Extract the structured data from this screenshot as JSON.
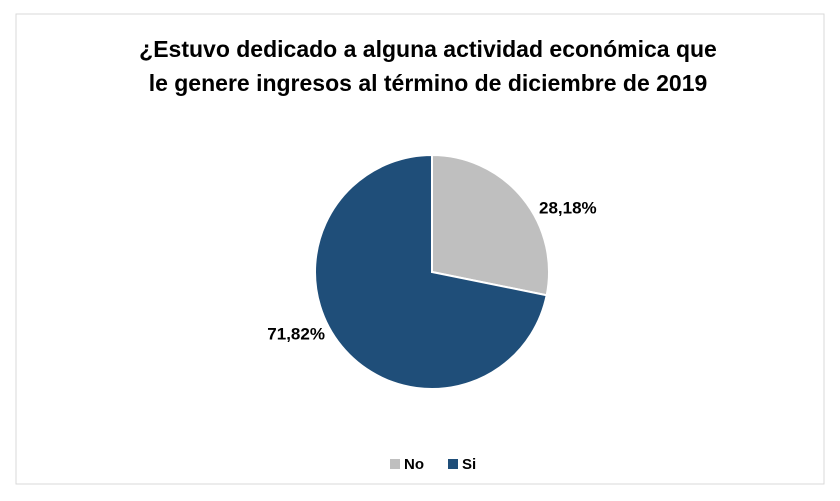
{
  "chart_data": {
    "type": "pie",
    "title": [
      "¿Estuvo dedicado a alguna actividad económica que",
      "le genere ingresos al término de diciembre de 2019"
    ],
    "categories": [
      "No",
      "Si"
    ],
    "values": [
      28.18,
      71.82
    ],
    "value_labels": [
      "28,18%",
      "71,82%"
    ],
    "colors": [
      "#bfbfbf",
      "#1f4e79"
    ],
    "legend": "bottom"
  }
}
